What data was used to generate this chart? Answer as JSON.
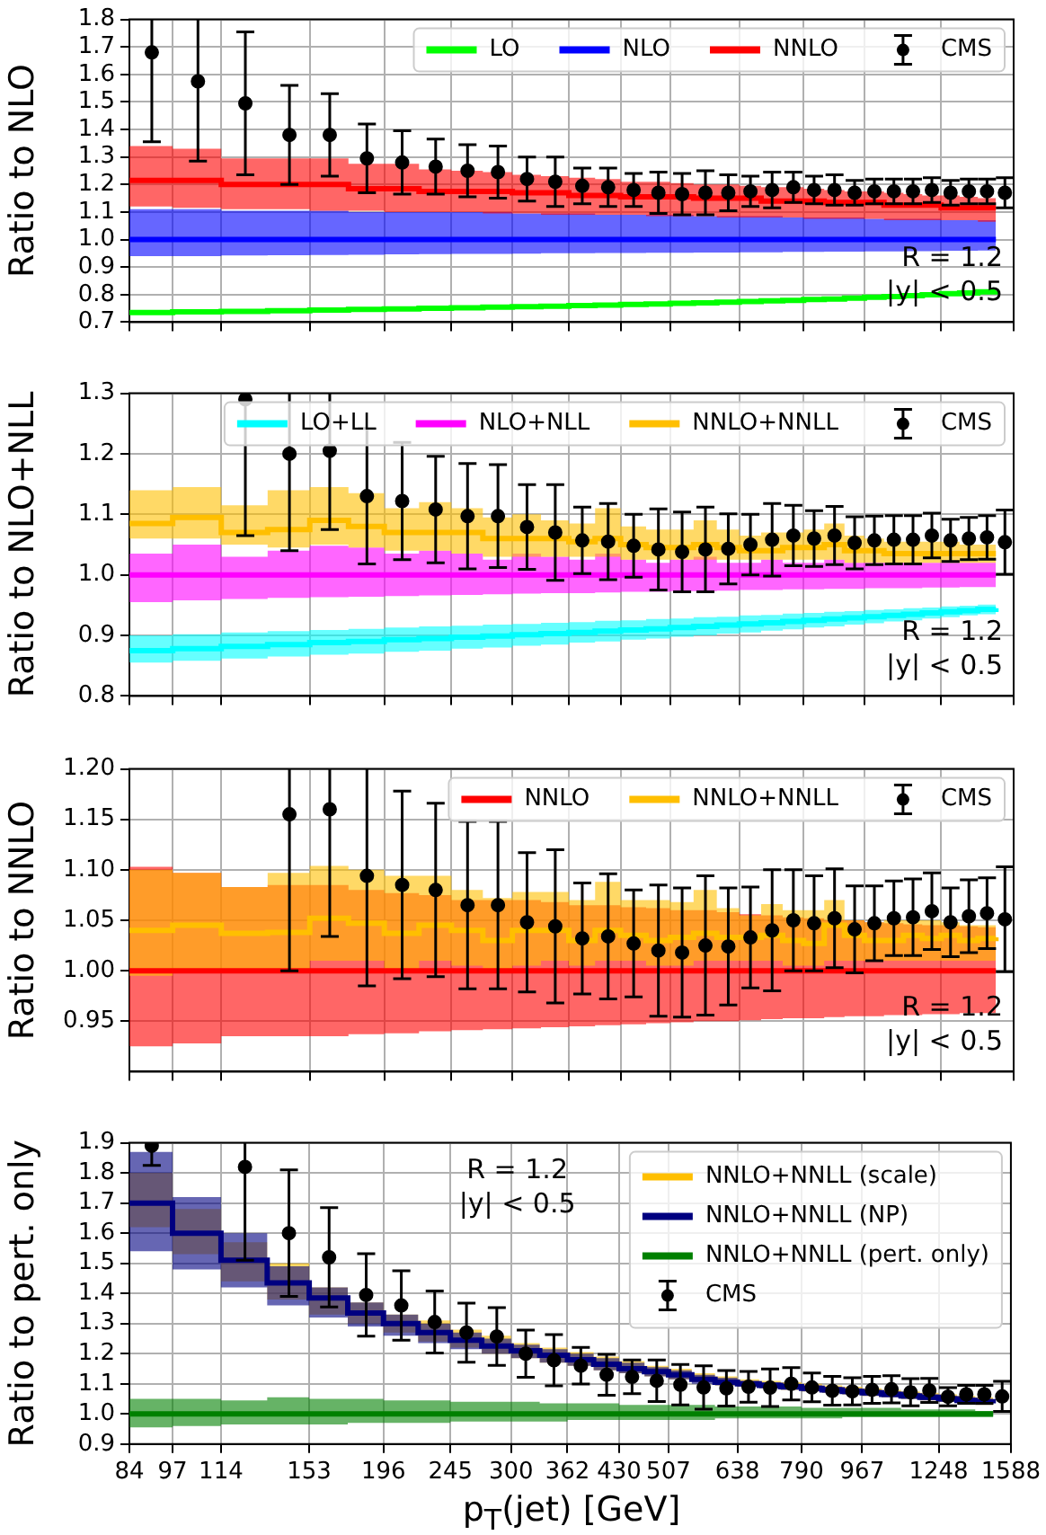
{
  "chart_data": [
    {
      "type": "step",
      "ylabel": "Ratio to NLO",
      "log": "x",
      "grid": true,
      "legend": "top right",
      "tick_labels": "y",
      "annotations": [
        "R = 1.2",
        "|y| < 0.5"
      ],
      "xlim": [
        84,
        1588
      ],
      "xticks": [
        84,
        97,
        114,
        153,
        196,
        245,
        300,
        362,
        430,
        507,
        638,
        790,
        967,
        1248,
        1588
      ],
      "ylim": [
        0.7,
        1.8
      ],
      "yticks": [
        0.7,
        0.8,
        0.9,
        {
          "value": 1,
          "label": "1.0"
        },
        1.1,
        1.2,
        1.3,
        1.4,
        1.5,
        1.6,
        1.7,
        1.8
      ],
      "x": [
        84,
        97,
        114,
        133,
        153,
        174,
        196,
        220,
        245,
        272,
        300,
        330,
        362,
        395,
        430,
        468,
        507,
        548,
        592,
        638,
        686,
        737,
        790,
        846,
        905,
        967,
        1032,
        1101,
        1172,
        1248,
        1327,
        1410,
        1497
      ],
      "series": [
        {
          "name": "LO",
          "color": "#00ff00",
          "values": [
            0.735,
            0.737,
            0.739,
            0.741,
            0.744,
            0.746,
            0.748,
            0.75,
            0.752,
            0.754,
            0.756,
            0.758,
            0.76,
            0.762,
            0.764,
            0.766,
            0.768,
            0.77,
            0.772,
            0.775,
            0.777,
            0.779,
            0.782,
            0.784,
            0.787,
            0.79,
            0.793,
            0.796,
            0.799,
            0.803,
            0.806,
            0.81,
            0.814
          ]
        },
        {
          "name": "NLO",
          "color": "#0000ff",
          "values": [
            1,
            1,
            1,
            1,
            1,
            1,
            1,
            1,
            1,
            1,
            1,
            1,
            1,
            1,
            1,
            1,
            1,
            1,
            1,
            1,
            1,
            1,
            1,
            1,
            1,
            1,
            1,
            1,
            1,
            1,
            1,
            1,
            1
          ],
          "upper": [
            1.11,
            1.11,
            1.105,
            1.105,
            1.105,
            1.1,
            1.1,
            1.1,
            1.1,
            1.1,
            1.095,
            1.095,
            1.095,
            1.09,
            1.09,
            1.09,
            1.09,
            1.085,
            1.085,
            1.085,
            1.085,
            1.08,
            1.08,
            1.08,
            1.08,
            1.075,
            1.075,
            1.075,
            1.075,
            1.07,
            1.07,
            1.07,
            1.07
          ],
          "lower": [
            0.94,
            0.94,
            0.942,
            0.943,
            0.944,
            0.945,
            0.946,
            0.947,
            0.948,
            0.948,
            0.949,
            0.95,
            0.95,
            0.951,
            0.951,
            0.952,
            0.952,
            0.953,
            0.953,
            0.954,
            0.954,
            0.955,
            0.955,
            0.956,
            0.956,
            0.957,
            0.957,
            0.958,
            0.958,
            0.959,
            0.959,
            0.96,
            0.96
          ]
        },
        {
          "name": "NNLO",
          "color": "#ff0000",
          "values": [
            1.215,
            1.215,
            1.2,
            1.2,
            1.2,
            1.185,
            1.185,
            1.175,
            1.175,
            1.175,
            1.17,
            1.17,
            1.16,
            1.16,
            1.155,
            1.155,
            1.155,
            1.15,
            1.15,
            1.15,
            1.14,
            1.14,
            1.14,
            1.135,
            1.135,
            1.135,
            1.125,
            1.125,
            1.125,
            1.115,
            1.115,
            1.115,
            1.115
          ],
          "upper": [
            1.34,
            1.33,
            1.295,
            1.295,
            1.295,
            1.275,
            1.275,
            1.255,
            1.25,
            1.245,
            1.235,
            1.23,
            1.225,
            1.22,
            1.21,
            1.21,
            1.205,
            1.2,
            1.2,
            1.195,
            1.19,
            1.19,
            1.185,
            1.18,
            1.175,
            1.175,
            1.17,
            1.165,
            1.16,
            1.16,
            1.155,
            1.15,
            1.15
          ],
          "lower": [
            1.12,
            1.115,
            1.11,
            1.11,
            1.105,
            1.105,
            1.1,
            1.1,
            1.1,
            1.095,
            1.095,
            1.09,
            1.09,
            1.09,
            1.09,
            1.085,
            1.085,
            1.085,
            1.08,
            1.08,
            1.08,
            1.08,
            1.075,
            1.075,
            1.075,
            1.075,
            1.07,
            1.07,
            1.07,
            1.07,
            1.07,
            1.065,
            1.065
          ]
        },
        {
          "name": "CMS",
          "type": "scatter",
          "color": "#000000",
          "x": [
            90.5,
            105.5,
            123.5,
            143,
            163.5,
            185,
            208,
            232.5,
            258.5,
            286,
            315,
            346,
            378.5,
            412.5,
            449,
            487.5,
            527.5,
            570,
            615,
            662,
            711.5,
            763.5,
            818,
            875.5,
            936,
            999.5,
            1066.5,
            1136.5,
            1210,
            1287.5,
            1368.5,
            1453.5,
            1542.5
          ],
          "marker": "circle",
          "values": [
            1.68,
            1.575,
            1.495,
            1.38,
            1.38,
            1.295,
            1.28,
            1.265,
            1.25,
            1.245,
            1.22,
            1.21,
            1.195,
            1.19,
            1.18,
            1.17,
            1.165,
            1.17,
            1.17,
            1.175,
            1.18,
            1.19,
            1.18,
            1.18,
            1.17,
            1.175,
            1.175,
            1.175,
            1.18,
            1.17,
            1.175,
            1.175,
            1.17
          ],
          "errors": [
            0.325,
            0.29,
            0.26,
            0.18,
            0.15,
            0.125,
            0.115,
            0.1,
            0.095,
            0.095,
            0.08,
            0.09,
            0.065,
            0.07,
            0.06,
            0.075,
            0.075,
            0.08,
            0.065,
            0.055,
            0.065,
            0.055,
            0.05,
            0.055,
            0.045,
            0.045,
            0.045,
            0.045,
            0.045,
            0.045,
            0.045,
            0.045,
            0.055
          ]
        }
      ]
    },
    {
      "type": "step",
      "ylabel": "Ratio to NLO+NLL",
      "log": "x",
      "grid": true,
      "legend": "top right",
      "tick_labels": "y",
      "annotations": [
        "R = 1.2",
        "|y| < 0.5"
      ],
      "xlim": [
        84,
        1588
      ],
      "xticks": [
        84,
        97,
        114,
        153,
        196,
        245,
        300,
        362,
        430,
        507,
        638,
        790,
        967,
        1248,
        1588
      ],
      "ylim": [
        0.8,
        1.3
      ],
      "yticks": [
        0.8,
        0.9,
        {
          "value": 1,
          "label": "1.0"
        },
        1.1,
        1.2,
        1.3
      ],
      "x": [
        84,
        97,
        114,
        133,
        153,
        174,
        196,
        220,
        245,
        272,
        300,
        330,
        362,
        395,
        430,
        468,
        507,
        548,
        592,
        638,
        686,
        737,
        790,
        846,
        905,
        967,
        1032,
        1101,
        1172,
        1248,
        1327,
        1410,
        1497
      ],
      "series": [
        {
          "name": "LO+LL",
          "color": "#00ffff",
          "values": [
            0.875,
            0.878,
            0.882,
            0.885,
            0.888,
            0.89,
            0.893,
            0.895,
            0.897,
            0.899,
            0.901,
            0.903,
            0.905,
            0.907,
            0.909,
            0.911,
            0.913,
            0.915,
            0.917,
            0.919,
            0.921,
            0.923,
            0.925,
            0.927,
            0.929,
            0.931,
            0.933,
            0.935,
            0.937,
            0.939,
            0.941,
            0.943,
            0.945
          ],
          "upper": [
            0.9,
            0.902,
            0.905,
            0.907,
            0.909,
            0.911,
            0.913,
            0.915,
            0.916,
            0.918,
            0.919,
            0.921,
            0.922,
            0.924,
            0.925,
            0.927,
            0.928,
            0.93,
            0.931,
            0.933,
            0.934,
            0.936,
            0.937,
            0.939,
            0.94,
            0.942,
            0.943,
            0.945,
            0.946,
            0.948,
            0.949,
            0.951,
            0.952
          ],
          "lower": [
            0.855,
            0.858,
            0.862,
            0.865,
            0.868,
            0.87,
            0.873,
            0.875,
            0.878,
            0.88,
            0.883,
            0.885,
            0.888,
            0.89,
            0.893,
            0.895,
            0.898,
            0.9,
            0.903,
            0.905,
            0.908,
            0.91,
            0.913,
            0.915,
            0.918,
            0.92,
            0.923,
            0.925,
            0.928,
            0.93,
            0.933,
            0.935,
            0.938
          ]
        },
        {
          "name": "NLO+NLL",
          "color": "#ff00ff",
          "values": [
            1,
            1,
            1,
            1,
            1,
            1,
            1,
            1,
            1,
            1,
            1,
            1,
            1,
            1,
            1,
            1,
            1,
            1,
            1,
            1,
            1,
            1,
            1,
            1,
            1,
            1,
            1,
            1,
            1,
            1,
            1,
            1,
            1
          ],
          "upper": [
            1.035,
            1.05,
            1.03,
            1.04,
            1.048,
            1.045,
            1.035,
            1.04,
            1.035,
            1.025,
            1.035,
            1.03,
            1.025,
            1.035,
            1.025,
            1.02,
            1.025,
            1.03,
            1.02,
            1.02,
            1.025,
            1.02,
            1.02,
            1.025,
            1.02,
            1.02,
            1.02,
            1.02,
            1.02,
            1.02,
            1.02,
            1.02,
            1.02
          ],
          "lower": [
            0.955,
            0.958,
            0.96,
            0.962,
            0.963,
            0.964,
            0.965,
            0.966,
            0.967,
            0.968,
            0.969,
            0.97,
            0.97,
            0.971,
            0.972,
            0.972,
            0.973,
            0.973,
            0.974,
            0.975,
            0.975,
            0.976,
            0.976,
            0.977,
            0.977,
            0.978,
            0.978,
            0.978,
            0.979,
            0.979,
            0.98,
            0.98,
            0.98
          ]
        },
        {
          "name": "NNLO+NNLL",
          "color": "#ffbf00",
          "values": [
            1.085,
            1.095,
            1.07,
            1.075,
            1.09,
            1.08,
            1.07,
            1.07,
            1.07,
            1.06,
            1.06,
            1.06,
            1.055,
            1.06,
            1.05,
            1.045,
            1.045,
            1.05,
            1.045,
            1.04,
            1.04,
            1.045,
            1.045,
            1.05,
            1.04,
            1.04,
            1.035,
            1.035,
            1.035,
            1.035,
            1.035,
            1.035,
            1.035
          ],
          "upper": [
            1.14,
            1.145,
            1.115,
            1.14,
            1.145,
            1.135,
            1.11,
            1.12,
            1.11,
            1.095,
            1.1,
            1.09,
            1.085,
            1.11,
            1.08,
            1.075,
            1.075,
            1.09,
            1.075,
            1.065,
            1.07,
            1.07,
            1.075,
            1.085,
            1.065,
            1.06,
            1.055,
            1.055,
            1.055,
            1.055,
            1.05,
            1.05,
            1.05
          ],
          "lower": [
            1.06,
            1.06,
            1.05,
            1.045,
            1.05,
            1.045,
            1.04,
            1.04,
            1.035,
            1.03,
            1.03,
            1.03,
            1.03,
            1.03,
            1.025,
            1.025,
            1.025,
            1.025,
            1.025,
            1.025,
            1.025,
            1.025,
            1.025,
            1.025,
            1.02,
            1.02,
            1.02,
            1.02,
            1.02,
            1.02,
            1.02,
            1.02,
            1.02
          ]
        },
        {
          "name": "CMS",
          "type": "scatter",
          "color": "#000000",
          "marker": "circle",
          "x": [
            123.5,
            143,
            163.5,
            185,
            208,
            232.5,
            258.5,
            286,
            315,
            346,
            378.5,
            412.5,
            449,
            487.5,
            527.5,
            570,
            615,
            662,
            711.5,
            763.5,
            818,
            875.5,
            936,
            999.5,
            1066.5,
            1136.5,
            1210,
            1287.5,
            1368.5,
            1453.5,
            1542.5
          ],
          "values": [
            1.29,
            1.2,
            1.205,
            1.13,
            1.122,
            1.108,
            1.097,
            1.097,
            1.079,
            1.07,
            1.057,
            1.055,
            1.048,
            1.042,
            1.038,
            1.042,
            1.043,
            1.05,
            1.058,
            1.065,
            1.06,
            1.065,
            1.053,
            1.057,
            1.058,
            1.058,
            1.065,
            1.057,
            1.06,
            1.062,
            1.054
          ],
          "errors": [
            0.225,
            0.16,
            0.13,
            0.112,
            0.097,
            0.088,
            0.087,
            0.085,
            0.07,
            0.079,
            0.055,
            0.063,
            0.052,
            0.067,
            0.066,
            0.07,
            0.058,
            0.05,
            0.06,
            0.05,
            0.046,
            0.048,
            0.043,
            0.04,
            0.04,
            0.04,
            0.037,
            0.035,
            0.035,
            0.036,
            0.053
          ]
        }
      ]
    },
    {
      "type": "step",
      "ylabel": "Ratio to NNLO",
      "log": "x",
      "grid": true,
      "legend": "top right",
      "tick_labels": "y",
      "annotations": [
        "R = 1.2",
        "|y| < 0.5"
      ],
      "xlim": [
        84,
        1588
      ],
      "xticks": [
        84,
        97,
        114,
        153,
        196,
        245,
        300,
        362,
        430,
        507,
        638,
        790,
        967,
        1248,
        1588
      ],
      "ylim": [
        0.9,
        1.2
      ],
      "yticks": [
        0.95,
        {
          "value": 1,
          "label": "1.00"
        },
        1.05,
        {
          "value": 1.1,
          "label": "1.10"
        },
        1.15,
        {
          "value": 1.2,
          "label": "1.20"
        }
      ],
      "x": [
        84,
        97,
        114,
        133,
        153,
        174,
        196,
        220,
        245,
        272,
        300,
        330,
        362,
        395,
        430,
        468,
        507,
        548,
        592,
        638,
        686,
        737,
        790,
        846,
        905,
        967,
        1032,
        1101,
        1172,
        1248,
        1327,
        1410,
        1497
      ],
      "series": [
        {
          "name": "NNLO",
          "color": "#ff0000",
          "values": [
            1,
            1,
            1,
            1,
            1,
            1,
            1,
            1,
            1,
            1,
            1,
            1,
            1,
            1,
            1,
            1,
            1,
            1,
            1,
            1,
            1,
            1,
            1,
            1,
            1,
            1,
            1,
            1,
            1,
            1,
            1,
            1,
            1
          ],
          "upper": [
            1.103,
            1.097,
            1.083,
            1.085,
            1.085,
            1.08,
            1.077,
            1.075,
            1.07,
            1.07,
            1.07,
            1.068,
            1.065,
            1.065,
            1.063,
            1.062,
            1.06,
            1.06,
            1.058,
            1.056,
            1.055,
            1.053,
            1.052,
            1.05,
            1.05,
            1.048,
            1.047,
            1.046,
            1.045,
            1.045,
            1.044,
            1.043,
            1.042
          ],
          "lower": [
            0.925,
            0.928,
            0.935,
            0.935,
            0.935,
            0.937,
            0.938,
            0.94,
            0.941,
            0.942,
            0.943,
            0.944,
            0.945,
            0.946,
            0.947,
            0.948,
            0.949,
            0.95,
            0.95,
            0.951,
            0.952,
            0.953,
            0.953,
            0.954,
            0.955,
            0.955,
            0.956,
            0.956,
            0.957,
            0.957,
            0.958,
            0.958,
            0.959
          ]
        },
        {
          "name": "NNLO+NNLL",
          "color": "#ffbf00",
          "values": [
            1.04,
            1.045,
            1.037,
            1.038,
            1.052,
            1.047,
            1.037,
            1.045,
            1.04,
            1.03,
            1.04,
            1.04,
            1.03,
            1.04,
            1.035,
            1.03,
            1.033,
            1.037,
            1.033,
            1.033,
            1.035,
            1.03,
            1.027,
            1.045,
            1.035,
            1.03,
            1.03,
            1.035,
            1.032,
            1.035,
            1.03,
            1.032,
            1.033
          ],
          "upper": [
            1.1,
            1.097,
            1.083,
            1.097,
            1.104,
            1.1,
            1.094,
            1.094,
            1.08,
            1.072,
            1.078,
            1.078,
            1.07,
            1.088,
            1.07,
            1.07,
            1.068,
            1.08,
            1.062,
            1.055,
            1.066,
            1.06,
            1.06,
            1.07,
            1.05,
            1.048,
            1.05,
            1.05,
            1.05,
            1.048,
            1.045,
            1.045,
            1.045
          ],
          "lower": [
            0.995,
            1,
            1,
            1,
            1.01,
            1.01,
            1,
            1.01,
            1.005,
            1,
            1.005,
            1.01,
            1.005,
            1.01,
            1.01,
            1.005,
            1.005,
            1.01,
            1.01,
            1.01,
            1.01,
            1.005,
            1.005,
            1.01,
            1.01,
            1.01,
            1.01,
            1.01,
            1.01,
            1.01,
            1.01,
            1.01,
            1.01
          ]
        },
        {
          "name": "CMS",
          "type": "scatter",
          "color": "#000000",
          "marker": "circle",
          "x": [
            143,
            163.5,
            185,
            208,
            232.5,
            258.5,
            286,
            315,
            346,
            378.5,
            412.5,
            449,
            487.5,
            527.5,
            570,
            615,
            662,
            711.5,
            763.5,
            818,
            875.5,
            936,
            999.5,
            1066.5,
            1136.5,
            1210,
            1287.5,
            1368.5,
            1453.5,
            1542.5
          ],
          "values": [
            1.155,
            1.16,
            1.094,
            1.085,
            1.08,
            1.065,
            1.065,
            1.048,
            1.044,
            1.032,
            1.034,
            1.027,
            1.02,
            1.018,
            1.025,
            1.024,
            1.033,
            1.04,
            1.05,
            1.047,
            1.052,
            1.041,
            1.047,
            1.052,
            1.053,
            1.059,
            1.048,
            1.054,
            1.057,
            1.051
          ],
          "errors": [
            0.155,
            0.126,
            0.109,
            0.093,
            0.086,
            0.083,
            0.083,
            0.069,
            0.076,
            0.055,
            0.062,
            0.053,
            0.065,
            0.064,
            0.069,
            0.058,
            0.05,
            0.06,
            0.05,
            0.047,
            0.049,
            0.043,
            0.037,
            0.037,
            0.038,
            0.038,
            0.034,
            0.036,
            0.035,
            0.052
          ]
        }
      ]
    },
    {
      "type": "step",
      "ylabel": "Ratio to pert. only",
      "xlabel": "p$_{T}$(jet) [GeV]",
      "log": "x",
      "grid": true,
      "legend": "top right",
      "annotations": [
        "R = 1.2",
        "|y| < 0.5"
      ],
      "xlim": [
        84,
        1588
      ],
      "xticks": [
        84,
        97,
        114,
        153,
        196,
        245,
        300,
        362,
        430,
        507,
        638,
        790,
        967,
        1248,
        1588
      ],
      "ylim": [
        0.9,
        1.9
      ],
      "yticks": [
        0.9,
        {
          "value": 1,
          "label": "1.0"
        },
        1.1,
        1.2,
        1.3,
        1.4,
        1.5,
        1.6,
        1.7,
        1.8,
        1.9
      ],
      "x": [
        84,
        97,
        114,
        133,
        153,
        174,
        196,
        220,
        245,
        272,
        300,
        330,
        362,
        395,
        430,
        468,
        507,
        548,
        592,
        638,
        686,
        737,
        790,
        846,
        905,
        967,
        1032,
        1101,
        1172,
        1248,
        1327,
        1410,
        1497
      ],
      "series": [
        {
          "name": "NNLO+NNLL (scale)",
          "color": "#ffbf00",
          "values": [
            null,
            null,
            null,
            null,
            null,
            null,
            null,
            null,
            null,
            null,
            null,
            null,
            null,
            null,
            null,
            null,
            null,
            null,
            null,
            null,
            null,
            null,
            null,
            null,
            null,
            null,
            null,
            null,
            null,
            null,
            null,
            null,
            null
          ],
          "upper": [
            1.8,
            1.68,
            1.57,
            1.5,
            1.42,
            1.37,
            1.33,
            1.31,
            1.28,
            1.26,
            1.235,
            1.22,
            1.205,
            1.19,
            1.175,
            1.16,
            1.15,
            1.135,
            1.125,
            1.115,
            1.11,
            1.105,
            1.1,
            1.095,
            1.09,
            1.085,
            1.08,
            1.075,
            1.07,
            1.065,
            1.06,
            1.055,
            1.05
          ],
          "lower": [
            1.62,
            1.53,
            1.44,
            1.38,
            1.33,
            1.3,
            1.27,
            1.24,
            1.22,
            1.2,
            1.185,
            1.17,
            1.16,
            1.145,
            1.135,
            1.125,
            1.115,
            1.105,
            1.095,
            1.09,
            1.085,
            1.08,
            1.075,
            1.07,
            1.065,
            1.06,
            1.055,
            1.05,
            1.045,
            1.04,
            1.035,
            1.03,
            1.025
          ]
        },
        {
          "name": "NNLO+NNLL (NP)",
          "color": "#000080",
          "values": [
            1.7,
            1.6,
            1.51,
            1.435,
            1.385,
            1.335,
            1.3,
            1.27,
            1.245,
            1.225,
            1.21,
            1.195,
            1.18,
            1.165,
            1.15,
            1.14,
            1.13,
            1.115,
            1.105,
            1.1,
            1.095,
            1.09,
            1.085,
            1.08,
            1.075,
            1.07,
            1.065,
            1.06,
            1.055,
            1.05,
            1.045,
            1.04,
            1.035
          ],
          "upper": [
            1.87,
            1.72,
            1.6,
            1.49,
            1.42,
            1.37,
            1.33,
            1.3,
            1.27,
            1.25,
            1.23,
            1.215,
            1.2,
            1.185,
            1.17,
            1.155,
            1.145,
            1.13,
            1.12,
            1.11,
            1.105,
            1.1,
            1.095,
            1.09,
            1.085,
            1.08,
            1.075,
            1.07,
            1.065,
            1.06,
            1.055,
            1.05,
            1.045
          ],
          "lower": [
            1.54,
            1.48,
            1.42,
            1.36,
            1.32,
            1.29,
            1.26,
            1.235,
            1.215,
            1.2,
            1.185,
            1.17,
            1.16,
            1.145,
            1.135,
            1.125,
            1.115,
            1.1,
            1.095,
            1.09,
            1.085,
            1.08,
            1.075,
            1.07,
            1.065,
            1.06,
            1.055,
            1.05,
            1.045,
            1.04,
            1.035,
            1.03,
            1.025
          ]
        },
        {
          "name": "NNLO+NNLL (pert. only)",
          "color": "#008000",
          "values": [
            1,
            1,
            1,
            1,
            1,
            1,
            1,
            1,
            1,
            1,
            1,
            1,
            1,
            1,
            1,
            1,
            1,
            1,
            1,
            1,
            1,
            1,
            1,
            1,
            1,
            1,
            1,
            1,
            1,
            1,
            1,
            1,
            1
          ],
          "upper": [
            1.05,
            1.05,
            1.045,
            1.055,
            1.05,
            1.05,
            1.045,
            1.045,
            1.04,
            1.04,
            1.04,
            1.035,
            1.035,
            1.035,
            1.03,
            1.03,
            1.03,
            1.03,
            1.025,
            1.025,
            1.025,
            1.025,
            1.02,
            1.02,
            1.02,
            1.02,
            1.02,
            1.015,
            1.015,
            1.015,
            1.015,
            1.01,
            1.01
          ],
          "lower": [
            0.955,
            0.96,
            0.965,
            0.965,
            0.965,
            0.97,
            0.97,
            0.97,
            0.975,
            0.975,
            0.975,
            0.975,
            0.98,
            0.98,
            0.98,
            0.98,
            0.98,
            0.98,
            0.985,
            0.985,
            0.985,
            0.985,
            0.985,
            0.985,
            0.99,
            0.99,
            0.99,
            0.99,
            0.99,
            0.99,
            0.99,
            0.99,
            0.99
          ]
        },
        {
          "name": "CMS",
          "type": "scatter",
          "color": "#000000",
          "x": [
            90.5,
            105.5,
            123.5,
            143,
            163.5,
            185,
            208,
            232.5,
            258.5,
            286,
            315,
            346,
            378.5,
            412.5,
            449,
            487.5,
            527.5,
            570,
            615,
            662,
            711.5,
            763.5,
            818,
            875.5,
            936,
            999.5,
            1066.5,
            1136.5,
            1210,
            1287.5,
            1368.5,
            1453.5,
            1542.5
          ],
          "marker": "circle",
          "values": [
            1.89,
            null,
            1.82,
            1.6,
            1.52,
            1.395,
            1.36,
            1.305,
            1.27,
            1.257,
            1.2,
            1.178,
            1.16,
            1.13,
            1.123,
            1.11,
            1.097,
            1.088,
            1.085,
            1.09,
            1.087,
            1.1,
            1.088,
            1.077,
            1.075,
            1.08,
            1.082,
            1.072,
            1.078,
            1.057,
            1.065,
            1.065,
            1.058
          ],
          "errors": [
            0.065,
            null,
            0.31,
            0.21,
            0.165,
            0.137,
            0.115,
            0.103,
            0.098,
            0.096,
            0.078,
            0.085,
            0.061,
            0.068,
            0.056,
            0.069,
            0.067,
            0.072,
            0.059,
            0.051,
            0.062,
            0.054,
            0.048,
            0.048,
            0.045,
            0.045,
            0.045,
            0.045,
            0.04,
            0.03,
            0.03,
            0.03,
            0.05
          ]
        }
      ]
    }
  ]
}
